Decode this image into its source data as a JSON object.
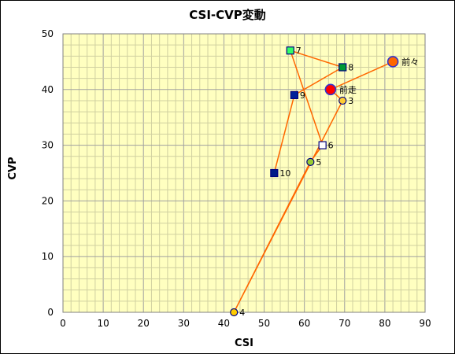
{
  "chart_data": {
    "type": "scatter",
    "title": "CSI-CVP変動",
    "xlabel": "CSI",
    "ylabel": "CVP",
    "xlim": [
      0,
      90
    ],
    "ylim": [
      0,
      50
    ],
    "x_ticks": [
      "0",
      "10",
      "20",
      "30",
      "40",
      "50",
      "60",
      "70",
      "80",
      "90"
    ],
    "y_ticks": [
      "0",
      "10",
      "20",
      "30",
      "40",
      "50"
    ],
    "grid": true,
    "legend": "none",
    "plot_background": "#ffffc0",
    "line_color": "#ff6600",
    "path_order": [
      "前々",
      "前走",
      "3",
      "4",
      "5",
      "6",
      "7",
      "8",
      "9",
      "10"
    ],
    "points": [
      {
        "label": "前々",
        "x": 82,
        "y": 45,
        "shape": "circle",
        "fill": "#ff6600",
        "stroke": "#3333cc",
        "size": "large"
      },
      {
        "label": "前走",
        "x": 66.5,
        "y": 40,
        "shape": "circle",
        "fill": "#ff0000",
        "stroke": "#3333cc",
        "size": "large"
      },
      {
        "label": "3",
        "x": 69.5,
        "y": 38,
        "shape": "circle",
        "fill": "#ffcc33",
        "stroke": "#000080",
        "size": "small"
      },
      {
        "label": "4",
        "x": 42.5,
        "y": 0,
        "shape": "circle",
        "fill": "#ffcc00",
        "stroke": "#000080",
        "size": "small"
      },
      {
        "label": "5",
        "x": 61.5,
        "y": 27,
        "shape": "circle",
        "fill": "#99cc33",
        "stroke": "#000080",
        "size": "small"
      },
      {
        "label": "6",
        "x": 64.5,
        "y": 30,
        "shape": "square",
        "fill": "#ffffff",
        "stroke": "#000080",
        "size": "small"
      },
      {
        "label": "7",
        "x": 56.5,
        "y": 47,
        "shape": "square",
        "fill": "#33ff66",
        "stroke": "#000080",
        "size": "small"
      },
      {
        "label": "8",
        "x": 69.5,
        "y": 44,
        "shape": "square",
        "fill": "#009933",
        "stroke": "#000080",
        "size": "small"
      },
      {
        "label": "9",
        "x": 57.5,
        "y": 39,
        "shape": "square",
        "fill": "#002299",
        "stroke": "#000080",
        "size": "small"
      },
      {
        "label": "10",
        "x": 52.5,
        "y": 25,
        "shape": "square",
        "fill": "#001a88",
        "stroke": "#000080",
        "size": "small"
      }
    ]
  }
}
